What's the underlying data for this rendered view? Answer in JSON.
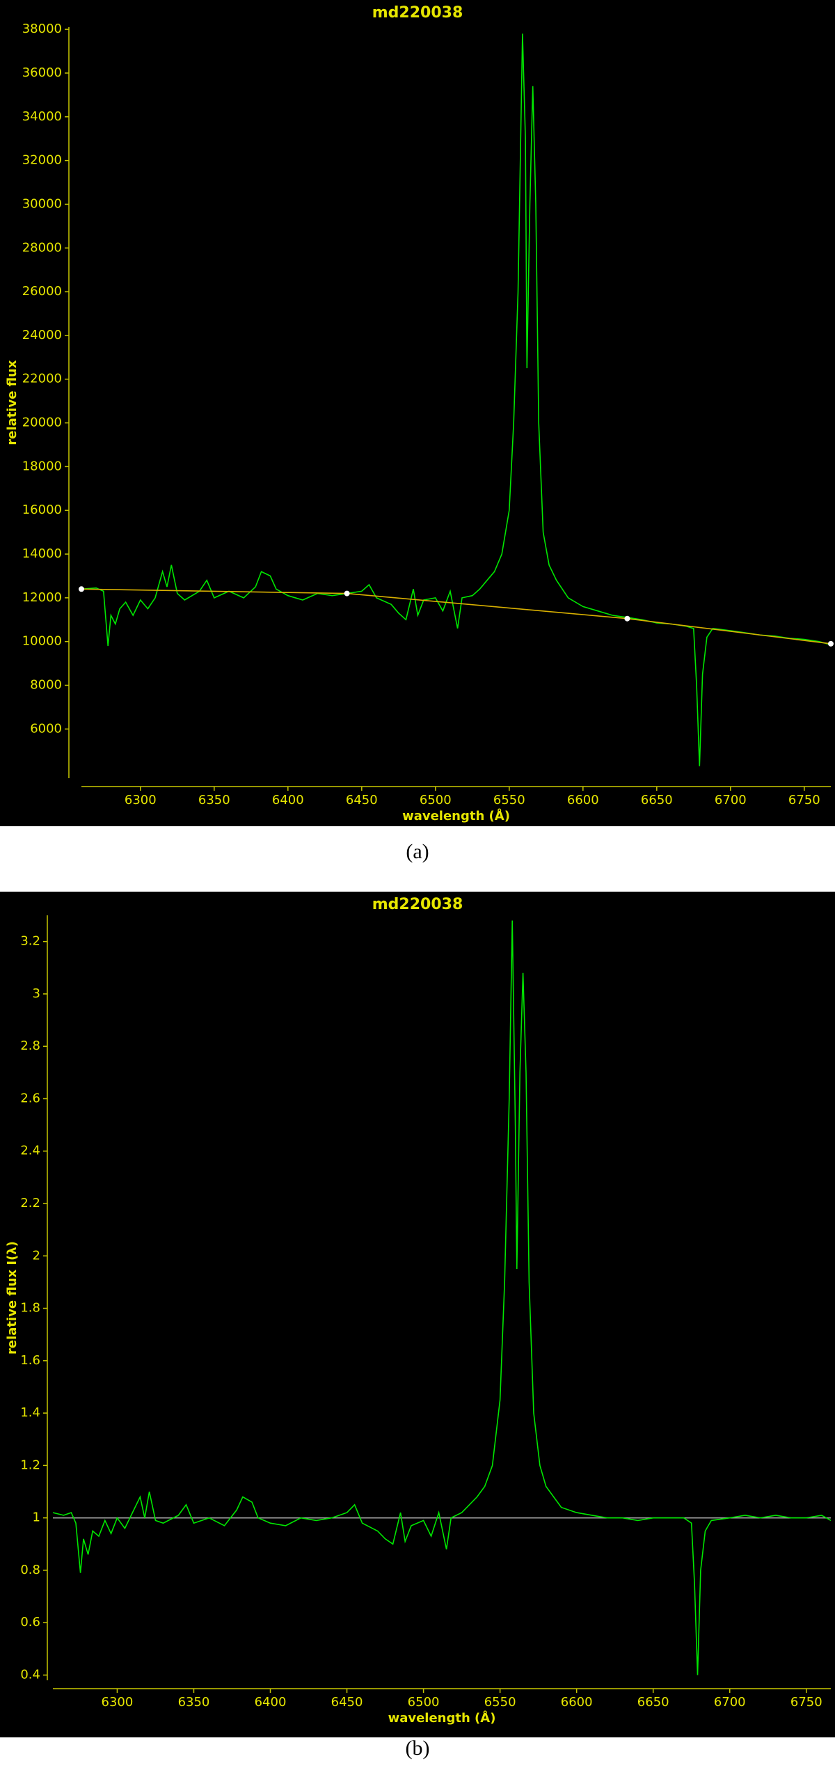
{
  "chart_data": [
    {
      "type": "line",
      "title": "md220038",
      "xlabel": "wavelength (Å)",
      "ylabel": "relative flux",
      "caption": "(a)",
      "xlim": [
        6260,
        6768
      ],
      "xticks": [
        6300,
        6350,
        6400,
        6450,
        6500,
        6550,
        6600,
        6650,
        6700,
        6750
      ],
      "ylim": [
        3750,
        38100
      ],
      "yticks": [
        6000,
        8000,
        10000,
        12000,
        14000,
        16000,
        18000,
        20000,
        22000,
        24000,
        26000,
        28000,
        30000,
        32000,
        34000,
        36000,
        38000
      ],
      "series": [
        {
          "color": "#00e600",
          "x": [
            6260,
            6270,
            6275,
            6278,
            6280,
            6283,
            6286,
            6290,
            6295,
            6300,
            6305,
            6310,
            6315,
            6318,
            6321,
            6325,
            6330,
            6340,
            6345,
            6350,
            6360,
            6370,
            6378,
            6382,
            6388,
            6392,
            6400,
            6410,
            6420,
            6430,
            6440,
            6450,
            6455,
            6460,
            6470,
            6475,
            6480,
            6485,
            6488,
            6492,
            6500,
            6505,
            6510,
            6515,
            6518,
            6525,
            6530,
            6535,
            6540,
            6545,
            6550,
            6553,
            6556,
            6559,
            6561,
            6562,
            6564,
            6566,
            6568,
            6570,
            6573,
            6577,
            6582,
            6590,
            6600,
            6610,
            6620,
            6630,
            6640,
            6650,
            6660,
            6670,
            6675,
            6677,
            6679,
            6681,
            6684,
            6688,
            6700,
            6710,
            6720,
            6730,
            6740,
            6750,
            6760,
            6768
          ],
          "values": [
            12400,
            12450,
            12300,
            9800,
            11200,
            10800,
            11500,
            11800,
            11200,
            11900,
            11500,
            12000,
            13200,
            12500,
            13500,
            12200,
            11900,
            12300,
            12800,
            12000,
            12300,
            12000,
            12500,
            13200,
            13000,
            12400,
            12100,
            11900,
            12200,
            12100,
            12200,
            12300,
            12600,
            12000,
            11700,
            11300,
            11000,
            12400,
            11200,
            11900,
            12000,
            11400,
            12300,
            10600,
            12000,
            12100,
            12400,
            12800,
            13200,
            14000,
            16000,
            20000,
            26000,
            37800,
            33000,
            22500,
            30000,
            35400,
            30000,
            20000,
            15000,
            13500,
            12800,
            12000,
            11600,
            11400,
            11200,
            11100,
            11000,
            10850,
            10800,
            10700,
            10600,
            8000,
            4300,
            8500,
            10200,
            10600,
            10500,
            10400,
            10300,
            10250,
            10150,
            10100,
            10000,
            9850
          ]
        },
        {
          "color": "#d8b000",
          "marker_color": "#ffffff",
          "x": [
            6260,
            6440,
            6630,
            6768
          ],
          "values": [
            12400,
            12200,
            11050,
            9900
          ]
        }
      ]
    },
    {
      "type": "line",
      "title": "md220038",
      "xlabel": "wavelength (Å)",
      "ylabel": "relative flux I(λ)",
      "caption": "(b)",
      "xlim": [
        6258,
        6766
      ],
      "xticks": [
        6300,
        6350,
        6400,
        6450,
        6500,
        6550,
        6600,
        6650,
        6700,
        6750
      ],
      "ylim": [
        0.38,
        3.3
      ],
      "yticks": [
        0.4,
        0.6,
        0.8,
        1,
        1.2,
        1.4,
        1.6,
        1.8,
        2,
        2.2,
        2.4,
        2.6,
        2.8,
        3,
        3.2
      ],
      "series": [
        {
          "color": "#a0a0a0",
          "x": [
            6258,
            6766
          ],
          "values": [
            1,
            1
          ]
        },
        {
          "color": "#00e600",
          "x": [
            6258,
            6265,
            6270,
            6273,
            6276,
            6278,
            6281,
            6284,
            6288,
            6292,
            6296,
            6300,
            6305,
            6310,
            6315,
            6318,
            6321,
            6325,
            6330,
            6340,
            6345,
            6350,
            6360,
            6370,
            6378,
            6382,
            6388,
            6392,
            6400,
            6410,
            6420,
            6430,
            6440,
            6450,
            6455,
            6460,
            6470,
            6475,
            6480,
            6485,
            6488,
            6492,
            6500,
            6505,
            6510,
            6515,
            6518,
            6525,
            6530,
            6535,
            6540,
            6545,
            6550,
            6553,
            6556,
            6558,
            6560,
            6561,
            6563,
            6565,
            6567,
            6569,
            6572,
            6576,
            6580,
            6590,
            6600,
            6610,
            6620,
            6630,
            6640,
            6650,
            6660,
            6670,
            6675,
            6677,
            6679,
            6681,
            6684,
            6688,
            6700,
            6710,
            6720,
            6730,
            6740,
            6750,
            6760,
            6766
          ],
          "values": [
            1.02,
            1.01,
            1.02,
            0.98,
            0.79,
            0.92,
            0.86,
            0.95,
            0.93,
            0.99,
            0.94,
            1.0,
            0.96,
            1.02,
            1.08,
            1.0,
            1.1,
            0.99,
            0.98,
            1.01,
            1.05,
            0.98,
            1.0,
            0.97,
            1.03,
            1.08,
            1.06,
            1.0,
            0.98,
            0.97,
            1.0,
            0.99,
            1.0,
            1.02,
            1.05,
            0.98,
            0.95,
            0.92,
            0.9,
            1.02,
            0.91,
            0.97,
            0.99,
            0.93,
            1.02,
            0.88,
            1.0,
            1.02,
            1.05,
            1.08,
            1.12,
            1.2,
            1.45,
            1.9,
            2.6,
            3.28,
            2.5,
            1.95,
            2.7,
            3.08,
            2.7,
            1.9,
            1.4,
            1.2,
            1.12,
            1.04,
            1.02,
            1.01,
            1.0,
            1.0,
            0.99,
            1.0,
            1.0,
            1.0,
            0.98,
            0.75,
            0.4,
            0.8,
            0.95,
            0.99,
            1.0,
            1.01,
            1.0,
            1.01,
            1.0,
            1.0,
            1.01,
            0.99
          ]
        }
      ]
    }
  ]
}
